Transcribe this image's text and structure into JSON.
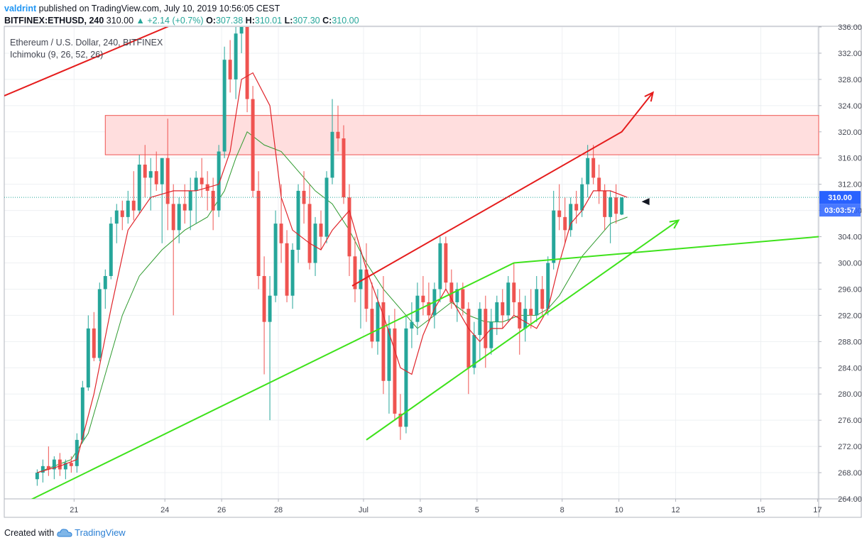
{
  "header": {
    "author": "valdrint",
    "published_text": "published on TradingView.com, July 10, 2019 10:56:05 CEST",
    "symbol": "BITFINEX:ETHUSD, 240",
    "last": "310.00",
    "change": "▲ +2.14 (+0.7%)",
    "o_label": "O:",
    "o_value": "307.38",
    "h_label": "H:",
    "h_value": "310.01",
    "l_label": "L:",
    "l_value": "307.30",
    "c_label": "C:",
    "c_value": "310.00"
  },
  "legend": {
    "title": "Ethereum / U.S. Dollar, 240, BITFINEX",
    "indicator": "Ichimoku (9, 26, 52, 26)"
  },
  "footer": {
    "created_with": "Created with",
    "brand": "TradingView"
  },
  "colors": {
    "up": "#26a69a",
    "down": "#ef5350",
    "red_line": "#e51c1c",
    "green_line": "#3ee21b",
    "conversion_line": "#e0242a",
    "base_line": "#2e9a2e",
    "resistance_zone": "#ffdede",
    "price_label_bg": "#2962ff",
    "timer_label_bg": "#2962ff"
  },
  "chart_data": {
    "type": "candlestick",
    "y_axis": {
      "ylim": [
        264,
        336
      ],
      "ticks": [
        264,
        268,
        272,
        276,
        280,
        284,
        288,
        292,
        296,
        300,
        304,
        308,
        312,
        316,
        320,
        324,
        328,
        332,
        336
      ],
      "tick_labels": [
        "264.00",
        "268.00",
        "272.00",
        "276.00",
        "280.00",
        "284.00",
        "288.00",
        "292.00",
        "296.00",
        "300.00",
        "304.00",
        "308.00",
        "312.00",
        "316.00",
        "320.00",
        "324.00",
        "328.00",
        "332.00",
        "336.00"
      ]
    },
    "x_axis": {
      "xlim": [
        -5.8,
        137.7
      ],
      "ticks": [
        {
          "bar": 6.5,
          "label": "21"
        },
        {
          "bar": 22.5,
          "label": "24"
        },
        {
          "bar": 32.5,
          "label": "26"
        },
        {
          "bar": 42.5,
          "label": "28"
        },
        {
          "bar": 57.5,
          "label": "Jul"
        },
        {
          "bar": 67.5,
          "label": "3"
        },
        {
          "bar": 77.5,
          "label": "5"
        },
        {
          "bar": 92.5,
          "label": "8"
        },
        {
          "bar": 102.5,
          "label": "10"
        },
        {
          "bar": 112.5,
          "label": "12"
        },
        {
          "bar": 127.5,
          "label": "15"
        },
        {
          "bar": 137.5,
          "label": "17"
        }
      ]
    },
    "current_price": 310.0,
    "current_price_label": "310.00",
    "countdown_label": "03:03:57",
    "candles": [
      [
        267.0,
        268.5,
        266.0,
        268.0
      ],
      [
        268.0,
        270.0,
        266.5,
        269.0
      ],
      [
        269.0,
        272.0,
        267.5,
        268.5
      ],
      [
        268.5,
        270.5,
        267.0,
        270.0
      ],
      [
        270.0,
        271.0,
        267.5,
        268.5
      ],
      [
        268.5,
        270.0,
        267.0,
        269.5
      ],
      [
        269.5,
        270.5,
        268.0,
        269.0
      ],
      [
        269.0,
        274.0,
        268.0,
        273.0
      ],
      [
        273.0,
        282.0,
        272.5,
        281.0
      ],
      [
        281.0,
        292.0,
        280.5,
        290.0
      ],
      [
        290.0,
        292.5,
        285.0,
        285.5
      ],
      [
        285.5,
        297.0,
        285.0,
        296.0
      ],
      [
        296.0,
        299.0,
        293.0,
        298.0
      ],
      [
        298.0,
        307.0,
        297.5,
        306.0
      ],
      [
        306.0,
        309.0,
        303.0,
        308.0
      ],
      [
        308.0,
        309.5,
        305.0,
        307.0
      ],
      [
        307.0,
        311.0,
        306.0,
        309.5
      ],
      [
        309.5,
        314.0,
        306.5,
        308.0
      ],
      [
        308.0,
        316.5,
        307.5,
        315.0
      ],
      [
        315.0,
        318.0,
        310.0,
        313.0
      ],
      [
        313.0,
        316.0,
        308.0,
        314.0
      ],
      [
        314.0,
        317.0,
        311.0,
        312.0
      ],
      [
        312.0,
        316.0,
        303.0,
        316.0
      ],
      [
        316.0,
        322.0,
        305.0,
        309.0
      ],
      [
        309.0,
        312.0,
        292.0,
        305.0
      ],
      [
        305.0,
        310.0,
        303.0,
        309.0
      ],
      [
        309.0,
        312.0,
        306.0,
        308.0
      ],
      [
        308.0,
        313.0,
        305.0,
        311.0
      ],
      [
        311.0,
        314.0,
        306.0,
        313.0
      ],
      [
        313.0,
        316.0,
        310.0,
        312.0
      ],
      [
        312.0,
        314.0,
        308.0,
        311.0
      ],
      [
        311.0,
        313.0,
        305.0,
        308.0
      ],
      [
        308.0,
        318.0,
        307.0,
        317.0
      ],
      [
        317.0,
        333.0,
        316.0,
        331.0
      ],
      [
        331.0,
        334.0,
        326.0,
        328.0
      ],
      [
        328.0,
        337.0,
        325.0,
        335.0
      ],
      [
        335.0,
        341.0,
        332.0,
        336.0
      ],
      [
        336.0,
        338.0,
        323.0,
        325.0
      ],
      [
        325.0,
        327.0,
        310.0,
        311.0
      ],
      [
        311.0,
        314.0,
        296.0,
        298.0
      ],
      [
        298.0,
        301.0,
        283.0,
        291.0
      ],
      [
        291.0,
        298.0,
        276.0,
        295.0
      ],
      [
        295.0,
        308.0,
        294.0,
        306.0
      ],
      [
        306.0,
        312.0,
        300.0,
        303.0
      ],
      [
        303.0,
        305.0,
        294.0,
        295.0
      ],
      [
        295.0,
        303.0,
        293.0,
        302.0
      ],
      [
        302.0,
        312.0,
        300.0,
        311.0
      ],
      [
        311.0,
        314.0,
        306.0,
        309.0
      ],
      [
        309.0,
        312.0,
        299.0,
        300.0
      ],
      [
        300.0,
        307.0,
        298.0,
        306.0
      ],
      [
        306.0,
        308.0,
        302.0,
        304.0
      ],
      [
        304.0,
        314.0,
        303.0,
        313.0
      ],
      [
        313.0,
        325.0,
        312.0,
        320.0
      ],
      [
        320.0,
        324.0,
        317.0,
        319.0
      ],
      [
        319.0,
        321.0,
        309.0,
        310.0
      ],
      [
        310.0,
        312.0,
        298.0,
        301.0
      ],
      [
        301.0,
        304.0,
        294.0,
        296.0
      ],
      [
        296.0,
        302.0,
        290.0,
        299.0
      ],
      [
        299.0,
        303.0,
        291.0,
        293.0
      ],
      [
        293.0,
        297.0,
        287.0,
        288.0
      ],
      [
        288.0,
        296.0,
        286.0,
        294.0
      ],
      [
        294.0,
        298.0,
        280.0,
        282.0
      ],
      [
        282.0,
        292.0,
        277.0,
        290.0
      ],
      [
        290.0,
        293.0,
        276.0,
        277.0
      ],
      [
        277.0,
        280.0,
        273.0,
        275.0
      ],
      [
        275.0,
        292.0,
        274.0,
        290.0
      ],
      [
        290.0,
        294.0,
        287.0,
        291.0
      ],
      [
        291.0,
        297.0,
        289.0,
        295.0
      ],
      [
        295.0,
        298.0,
        292.0,
        294.0
      ],
      [
        294.0,
        297.0,
        291.0,
        292.0
      ],
      [
        292.0,
        297.0,
        290.0,
        296.0
      ],
      [
        296.0,
        304.0,
        294.0,
        303.0
      ],
      [
        303.0,
        304.0,
        296.0,
        297.0
      ],
      [
        297.0,
        299.0,
        293.0,
        294.0
      ],
      [
        294.0,
        297.0,
        291.0,
        296.0
      ],
      [
        296.0,
        297.0,
        292.0,
        293.0
      ],
      [
        293.0,
        294.0,
        280.0,
        284.0
      ],
      [
        284.0,
        291.0,
        283.0,
        289.0
      ],
      [
        289.0,
        294.0,
        285.0,
        293.0
      ],
      [
        293.0,
        295.0,
        284.0,
        287.0
      ],
      [
        287.0,
        293.0,
        286.0,
        291.0
      ],
      [
        291.0,
        295.0,
        289.0,
        294.0
      ],
      [
        294.0,
        296.0,
        290.0,
        292.0
      ],
      [
        292.0,
        298.0,
        291.0,
        297.0
      ],
      [
        297.0,
        300.0,
        292.0,
        294.0
      ],
      [
        294.0,
        296.0,
        286.0,
        290.0
      ],
      [
        290.0,
        295.0,
        288.0,
        293.0
      ],
      [
        293.0,
        296.0,
        290.0,
        292.0
      ],
      [
        292.0,
        298.0,
        291.0,
        296.0
      ],
      [
        296.0,
        298.0,
        292.0,
        293.0
      ],
      [
        293.0,
        301.0,
        292.0,
        300.0
      ],
      [
        300.0,
        311.0,
        299.0,
        308.0
      ],
      [
        308.0,
        312.0,
        305.0,
        307.0
      ],
      [
        307.0,
        310.0,
        303.0,
        305.0
      ],
      [
        305.0,
        310.0,
        304.0,
        309.0
      ],
      [
        309.0,
        311.0,
        306.0,
        308.0
      ],
      [
        308.0,
        313.0,
        307.0,
        312.0
      ],
      [
        312.0,
        318.0,
        310.0,
        316.0
      ],
      [
        316.0,
        318.0,
        312.0,
        313.0
      ],
      [
        313.0,
        315.0,
        309.0,
        311.0
      ],
      [
        311.0,
        312.0,
        305.0,
        307.0
      ],
      [
        307.0,
        311.0,
        303.0,
        310.0
      ],
      [
        310.0,
        312.0,
        306.0,
        307.5
      ],
      [
        307.38,
        310.01,
        307.3,
        310.0
      ]
    ],
    "conversion_line": [
      [
        0,
        268
      ],
      [
        4,
        269
      ],
      [
        7,
        270
      ],
      [
        10,
        280
      ],
      [
        13,
        293
      ],
      [
        16,
        305
      ],
      [
        20,
        310
      ],
      [
        24,
        311
      ],
      [
        28,
        311
      ],
      [
        32,
        312
      ],
      [
        34,
        317
      ],
      [
        36,
        328
      ],
      [
        38,
        329
      ],
      [
        41,
        324
      ],
      [
        43,
        310
      ],
      [
        45,
        305
      ],
      [
        48,
        303
      ],
      [
        50,
        302
      ],
      [
        52,
        305
      ],
      [
        55,
        308
      ],
      [
        58,
        299
      ],
      [
        61,
        292
      ],
      [
        64,
        284
      ],
      [
        66,
        283
      ],
      [
        68,
        289
      ],
      [
        70,
        293
      ],
      [
        72,
        296
      ],
      [
        74,
        293
      ],
      [
        76,
        290
      ],
      [
        78,
        288
      ],
      [
        80,
        290
      ],
      [
        82,
        290
      ],
      [
        84,
        292
      ],
      [
        86,
        291
      ],
      [
        88,
        290
      ],
      [
        90,
        293
      ],
      [
        92,
        300
      ],
      [
        94,
        306
      ],
      [
        96,
        308
      ],
      [
        98,
        311
      ],
      [
        101,
        311
      ],
      [
        104,
        310
      ]
    ],
    "base_line": [
      [
        0,
        268
      ],
      [
        6,
        270
      ],
      [
        9,
        274
      ],
      [
        12,
        283
      ],
      [
        15,
        292
      ],
      [
        18,
        298
      ],
      [
        22,
        302
      ],
      [
        26,
        305
      ],
      [
        30,
        307
      ],
      [
        33,
        311
      ],
      [
        35,
        316
      ],
      [
        37,
        320
      ],
      [
        40,
        318
      ],
      [
        43,
        317
      ],
      [
        46,
        314
      ],
      [
        49,
        311
      ],
      [
        52,
        309
      ],
      [
        55,
        305
      ],
      [
        58,
        300
      ],
      [
        61,
        296
      ],
      [
        64,
        293
      ],
      [
        67,
        290
      ],
      [
        70,
        292
      ],
      [
        73,
        294
      ],
      [
        76,
        292
      ],
      [
        79,
        291
      ],
      [
        82,
        291
      ],
      [
        85,
        292
      ],
      [
        88,
        292
      ],
      [
        90,
        293
      ],
      [
        92,
        295
      ],
      [
        94,
        298
      ],
      [
        96,
        301
      ],
      [
        98,
        303
      ],
      [
        101,
        306
      ],
      [
        104,
        307
      ]
    ],
    "resistance_zone": {
      "x": [
        12,
        137.7
      ],
      "y": [
        316.5,
        322.5
      ]
    },
    "trend_lines": [
      {
        "color": "red",
        "points": [
          [
            -5.8,
            325.5
          ],
          [
            33.8,
            340
          ]
        ]
      },
      {
        "color": "red",
        "points": [
          [
            55.5,
            296.5
          ],
          [
            103,
            320
          ]
        ],
        "arrow_to": [
          108.5,
          326.0
        ]
      },
      {
        "color": "green",
        "points": [
          [
            -2,
            263.5
          ],
          [
            84,
            300
          ]
        ],
        "extend_to": [
          137.7,
          304.0
        ]
      },
      {
        "color": "green",
        "points": [
          [
            58,
            273
          ]
        ],
        "arrow_to": [
          113,
          306.5
        ]
      }
    ]
  }
}
